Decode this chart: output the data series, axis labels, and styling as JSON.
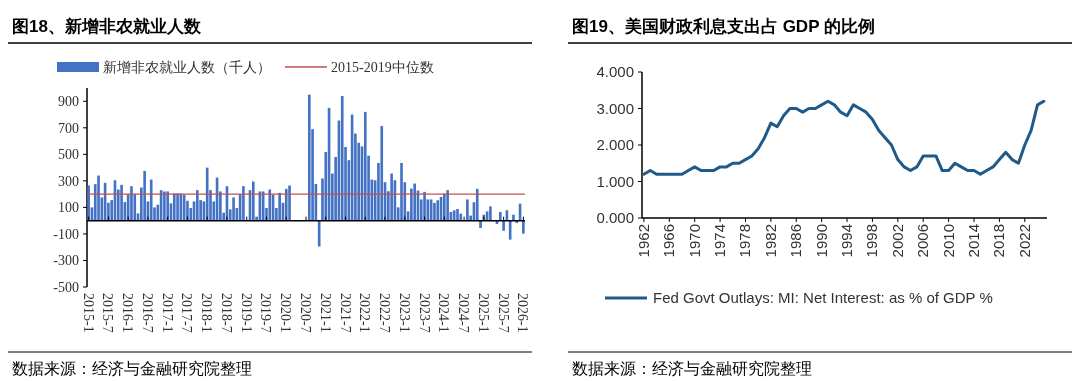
{
  "chart_data": [
    {
      "type": "bar",
      "title": "图18、新增非农就业人数",
      "categories": [
        "2015-1",
        null,
        null,
        null,
        null,
        null,
        "2015-7",
        null,
        null,
        null,
        null,
        null,
        "2016-1",
        null,
        null,
        null,
        null,
        null,
        "2016-7",
        null,
        null,
        null,
        null,
        null,
        "2017-1",
        null,
        null,
        null,
        null,
        null,
        "2017-7",
        null,
        null,
        null,
        null,
        null,
        "2018-1",
        null,
        null,
        null,
        null,
        null,
        "2018-7",
        null,
        null,
        null,
        null,
        null,
        "2019-1",
        null,
        null,
        null,
        null,
        null,
        "2019-7",
        null,
        null,
        null,
        null,
        null,
        "2020-1",
        null,
        null,
        null,
        null,
        null,
        "2020-7",
        null,
        null,
        null,
        null,
        null,
        "2021-1",
        null,
        null,
        null,
        null,
        null,
        "2021-7",
        null,
        null,
        null,
        null,
        null,
        "2022-1",
        null,
        null,
        null,
        null,
        null,
        "2022-7",
        null,
        null,
        null,
        null,
        null,
        "2023-1",
        null,
        null,
        null,
        null,
        null,
        "2023-7",
        null,
        null,
        null,
        null,
        null,
        "2024-1",
        null,
        null,
        null,
        null,
        null,
        "2024-7",
        null,
        null,
        null,
        null,
        null,
        "2025-1",
        null,
        null,
        null,
        null,
        null,
        "2025-7",
        null,
        null,
        null,
        null,
        null,
        "2026-1"
      ],
      "series": [
        {
          "name": "新增非农就业人数（千人）",
          "color": "#4472c4",
          "values": [
            265,
            100,
            275,
            340,
            175,
            285,
            135,
            155,
            305,
            235,
            270,
            140,
            200,
            260,
            200,
            55,
            250,
            375,
            145,
            310,
            100,
            120,
            230,
            220,
            220,
            130,
            205,
            205,
            205,
            195,
            150,
            95,
            145,
            230,
            155,
            145,
            400,
            230,
            145,
            325,
            220,
            60,
            260,
            85,
            175,
            95,
            200,
            260,
            null,
            230,
            295,
            30,
            220,
            220,
            95,
            235,
            195,
            95,
            210,
            135,
            240,
            265,
            null,
            null,
            null,
            null,
            null,
            950,
            690,
            277,
            -195,
            318,
            517,
            850,
            355,
            480,
            755,
            940,
            555,
            456,
            800,
            657,
            587,
            560,
            820,
            490,
            310,
            305,
            435,
            713,
            290,
            222,
            355,
            305,
            100,
            435,
            290,
            70,
            242,
            280,
            227,
            160,
            217,
            160,
            160,
            134,
            154,
            179,
            204,
            230,
            66,
            78,
            88,
            53,
            null,
            160,
            38,
            139,
            240,
            -55,
            45,
            70,
            108,
            null,
            -25,
            66,
            -76,
            78,
            -143,
            45,
            -18,
            128,
            -98
          ]
        }
      ],
      "ref_lines": [
        {
          "axis": "y",
          "value": 200,
          "label": "2015-2019中位数",
          "color": "#c0504d"
        }
      ],
      "ylim": [
        -500,
        1000
      ],
      "yticks": [
        -500,
        -300,
        -100,
        100,
        300,
        500,
        700,
        900
      ],
      "legend": "top",
      "annotations": [
        "数据来源：经济与金融研究院整理"
      ]
    },
    {
      "type": "line",
      "title": "图19、美国财政利息支出占 GDP 的比例",
      "x": [
        1962,
        1963,
        1964,
        1965,
        1966,
        1967,
        1968,
        1969,
        1970,
        1971,
        1972,
        1973,
        1974,
        1975,
        1976,
        1977,
        1978,
        1979,
        1980,
        1981,
        1982,
        1983,
        1984,
        1985,
        1986,
        1987,
        1988,
        1989,
        1990,
        1991,
        1992,
        1993,
        1994,
        1995,
        1996,
        1997,
        1998,
        1999,
        2000,
        2001,
        2002,
        2003,
        2004,
        2005,
        2006,
        2007,
        2008,
        2009,
        2010,
        2011,
        2012,
        2013,
        2014,
        2015,
        2016,
        2017,
        2018,
        2019,
        2020,
        2021,
        2022,
        2023,
        2024,
        2025
      ],
      "series": [
        {
          "name": "Fed Govt Outlays: MI: Net Interest: as % of GDP %",
          "color": "#1f5a8b",
          "values": [
            1.2,
            1.3,
            1.2,
            1.2,
            1.2,
            1.2,
            1.2,
            1.3,
            1.4,
            1.3,
            1.3,
            1.3,
            1.4,
            1.4,
            1.5,
            1.5,
            1.6,
            1.7,
            1.9,
            2.2,
            2.6,
            2.5,
            2.8,
            3.0,
            3.0,
            2.9,
            3.0,
            3.0,
            3.1,
            3.2,
            3.1,
            2.9,
            2.8,
            3.1,
            3.0,
            2.9,
            2.7,
            2.4,
            2.2,
            2.0,
            1.6,
            1.4,
            1.3,
            1.4,
            1.7,
            1.7,
            1.7,
            1.3,
            1.3,
            1.5,
            1.4,
            1.3,
            1.3,
            1.2,
            1.3,
            1.4,
            1.6,
            1.8,
            1.6,
            1.5,
            2.0,
            2.4,
            3.1,
            3.2
          ]
        }
      ],
      "xlim": [
        1961.7,
        2025.5
      ],
      "xticks": [
        1962,
        1966,
        1970,
        1974,
        1978,
        1982,
        1986,
        1990,
        1994,
        1998,
        2002,
        2006,
        2010,
        2014,
        2018,
        2022
      ],
      "ylim": [
        0,
        4
      ],
      "yticks": [
        {
          "value": 0,
          "label": "0.000"
        },
        {
          "value": 1,
          "label": "1.000"
        },
        {
          "value": 2,
          "label": "2.000"
        },
        {
          "value": 3,
          "label": "3.000"
        },
        {
          "value": 4,
          "label": "4.000"
        }
      ],
      "legend": "bottom",
      "annotations": [
        "数据来源：经济与金融研究院整理"
      ]
    }
  ]
}
